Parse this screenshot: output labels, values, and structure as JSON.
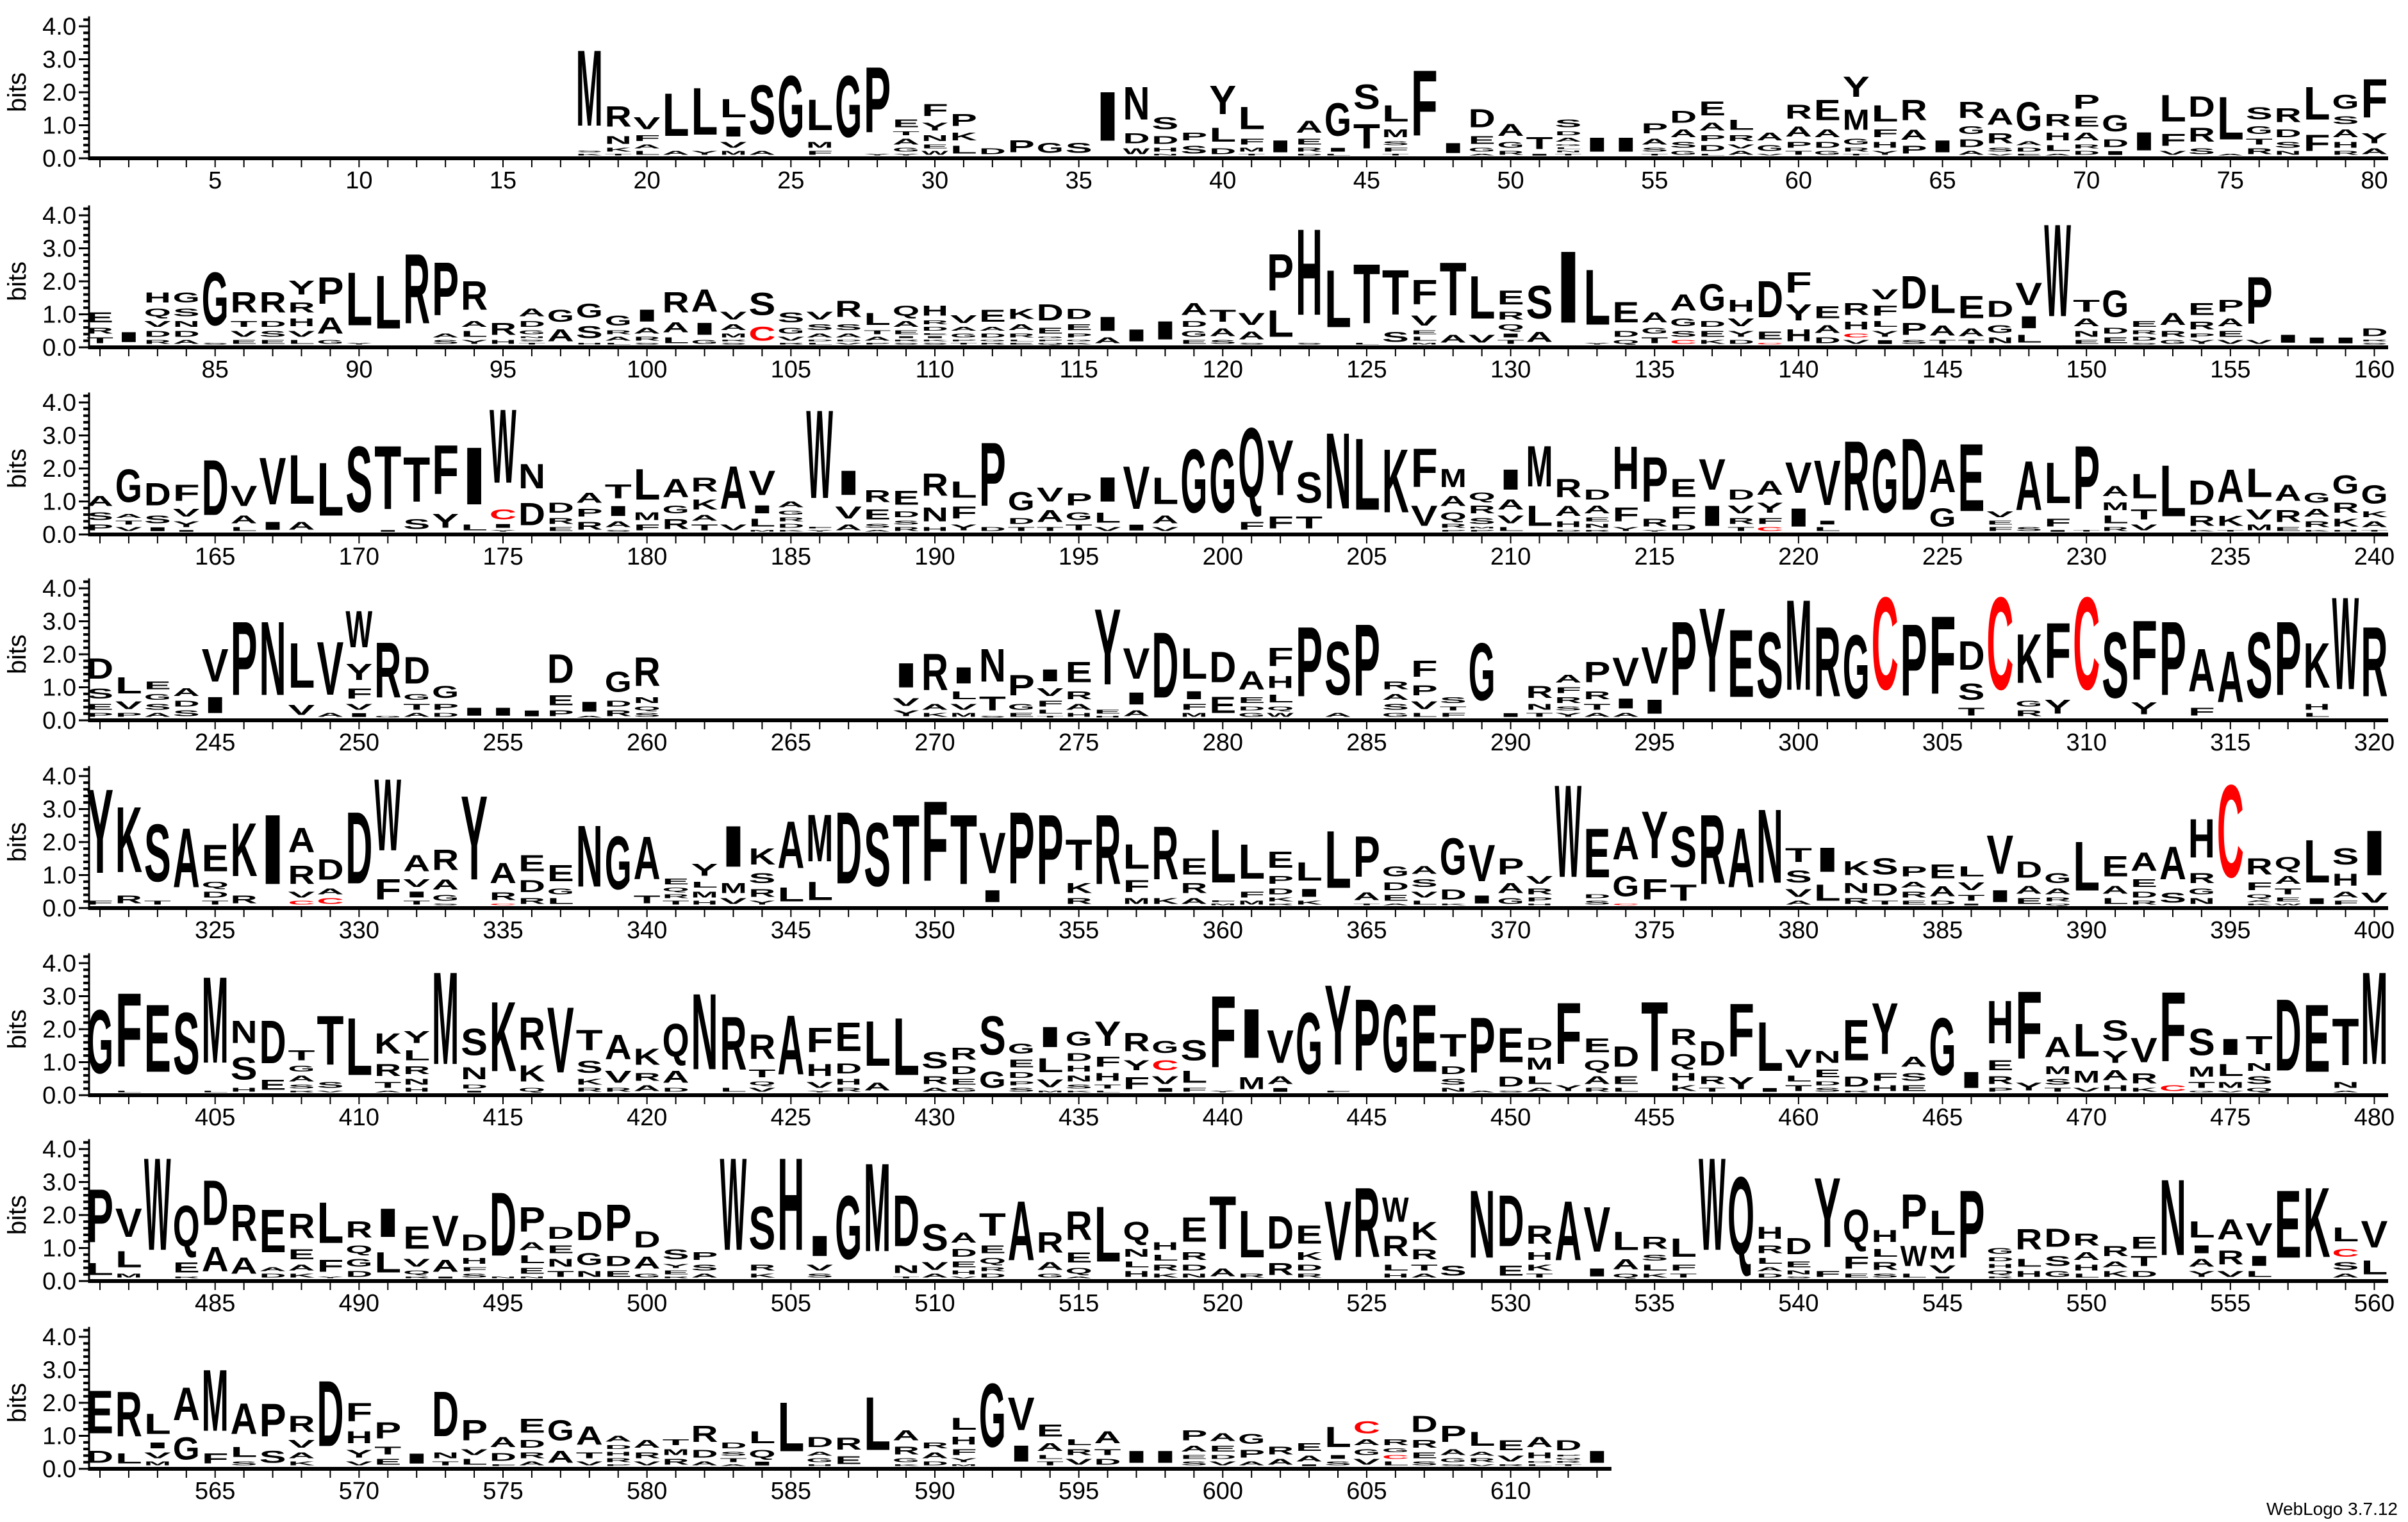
{
  "chart_data": {
    "type": "bar",
    "stacked": true,
    "ylabel": "bits",
    "ylim": [
      0,
      4.3
    ],
    "y_tick_labels": [
      "0.0",
      "1.0",
      "2.0",
      "3.0",
      "4.0"
    ],
    "colors": {
      "default": "#000000",
      "C": "#ff0000",
      "axis": "#000000"
    },
    "footer": "WebLogo 3.7.12",
    "rows": [
      {
        "start": 1,
        "xtick_labels": [
          "5",
          "10",
          "15",
          "20",
          "25",
          "30",
          "35",
          "40",
          "45",
          "50",
          "55",
          "60",
          "65",
          "70",
          "75",
          "80"
        ],
        "stacks": [
          "",
          "",
          "",
          "",
          "",
          "",
          "",
          "",
          "",
          "",
          "",
          "",
          "",
          "",
          "",
          "",
          "",
          "M3.7 S.1 K.1",
          "R1.0 N.4 K.2 T.1",
          "V.6 F.3 A.2 L.2",
          "L2.1 A.2",
          "L2.3 Y.2",
          "L.9 I.5 V.3 M.2",
          "S2.4 A.2",
          "G3.0",
          "L1.5 M.3 F.2",
          "G3.0",
          "P3.2 Y.1",
          "E.4 T.2 A.3 G.2 Y.1",
          "F.6 Y.4 N.3 E.2 W.2",
          "P.6 K.4 L.4",
          "D.3",
          "P.6",
          "G.5",
          "S.5",
          "I2.4",
          "N1.6 D.5 W.3",
          "S.6 D.4 H.2 N.1",
          "P.4 S.4",
          "Y1.4 L.7 D.3",
          "L1.1 F.3 M.2 T.1",
          "I.6",
          "A.6 E.3 R.2 D.1",
          "G1.6 I.2 L.1",
          "S1.2 T1.2",
          "L.8 M.4 S.2 F.2 T.1",
          "F3.2",
          "I.5",
          "D.9 E.4 G.2 A.1",
          "A.6 G.3 R.2",
          "T.6 I.1",
          "S.4 D.2 A.2 G.1 L.1 N.1 T.1",
          "I.7",
          "I.7",
          "P.5 A.3 S.2 T.1",
          "D.6 A.4 S.3 G.2",
          "E.7 A.4 P.3 D.3 L.1",
          "L.5 R.3 V.2 A.2",
          "A.4 G.3 V.1",
          "R.7 A.5 P.3 T.2",
          "E1.0 A.4 D.3 G.2",
          "Y1.0 M1.0 G.3 R.2 T.1",
          "L.8 F.4 H.3 Y.2",
          "R1.0 A.5 P.4",
          "I.6",
          "R.8 G.4 D.4 A.2",
          "A.8 R.5 S.2 V.1",
          "G1.4 A.2 D.2 E.1",
          "R.6 H.4 L.3 A.1",
          "P.7 E.5 A.4 R.2 D.2",
          "G.8 D.4 I.2",
          "I.9",
          "L1.3 F.6 V.2",
          "D1.0 R.7 S.3",
          "L2.1 A.1",
          "S.6 G.4 T.3 R.3",
          "R.7 D.4 S.3 N.2",
          "L1.6 F.8",
          "G.7 S.4 A.4 H.3 R.2",
          "F1.9 Y.5 A.3"
        ]
      },
      {
        "start": 81,
        "xtick_labels": [
          "85",
          "90",
          "95",
          "100",
          "105",
          "110",
          "115",
          "120",
          "125",
          "130",
          "135",
          "140",
          "145",
          "150",
          "155",
          "160"
        ],
        "stacks": [
          "E.5 R.3 T.3",
          "I.5",
          "H.5 Q.4 V.3 D.3 R.2",
          "G.5 S.4 N.3 D.3 A.2",
          "G2.6 S.1",
          "R1.0 T.3 V.3 E.2",
          "R1.0 D.3 S.3 E.2",
          "Y.7 R.5 H.4 V.3 L.2",
          "P1.3 A.8 G.2",
          "L2.6 Y.1",
          "L2.6",
          "R3.4",
          "P2.6 A.2 S.2",
          "R1.4 A.3 L.3 Y.2",
          "R.6 H.2",
          "A.4 D.3 G.2 N.1 S.1 T.1",
          "G.6 A.6",
          "G.7 S.6 H.1",
          "G.5 R.2 A.2 L.1",
          "I.6 A.3 R.2 S.1",
          "R1.0 A.5 L.3",
          "A1.1 I.6 G.2",
          "V.4 A.3 M.2 R.1 S.1",
          "S1.1 C.7",
          "S.5 G.3 V.2 R.1",
          "V.4 S.3 A.2 D.1 L.1",
          "R.8 S.3 A.2 D.1 V.1",
          "L.6 T.2 A.2 P.1",
          "Q.5 A.3 E.2 I.1 R.1 S.1",
          "H.5 R.2 D.2 E.1 I.1 K.1 S.1",
          "V.4 A.2 G.2 P.1 T.1",
          "E.6 A.2 D.2 G.1 R.1",
          "K.5 A.3 R.2 L.1 E.1",
          "D.8 E.3 G.1 P.1 Q.1",
          "D.5 E.3 P.2 G.1 K.1",
          "I.7 A.3",
          "I.6",
          "I.9",
          "A.6 D.3 G.3 E.2",
          "T.6 A.4 S.2",
          "V.6 A.4 S.1",
          "P1.8 L1.3",
          "H4.2 S.1",
          "L2.8",
          "T2.9 L.1",
          "T2.2 S.5",
          "F1.2 V.5 E.2 L.2 M.1",
          "T2.6 A.4",
          "L2.1 V.4",
          "E.7 R.4 Q.3 I.2 T.2",
          "S1.6 A.5",
          "I3.5",
          "L2.7 Y.1",
          "E1.0 D.3 Q.2",
          "A.5 G.3 T.3",
          "A.8 G.4 S.3 C.2",
          "G1.3 D.3 E.3 K.2",
          "H.6 V.4 Y.3 D.2",
          "D1.8 E.4 C.1",
          "F1.0 Y.8 H.6",
          "E.6 A.4 D.3",
          "R.6 H.4 C.2 V.2",
          "V.5 F.5 L.3 Y.3 I.2",
          "D1.6 P.6 S.2",
          "L1.4 A.5 T.2",
          "E1.1 A.4 T.2",
          "D.8 G.4 N.3",
          "V1.1 I.6 L.4",
          "W4.5",
          "T.6 A.4 N.3 E.2",
          "G1.3 D.3 E.3",
          "E.3 R.2 D.2 S.1",
          "A.6 R.3 G.2",
          "E.6 R.4 P.2 Y.2",
          "P.6 A.4 E.3 V.2",
          "P2.3 V.2",
          "I.4",
          "I.3",
          "I.3",
          "D.4 R.1 S.1"
        ]
      },
      {
        "start": 161,
        "xtick_labels": [
          "165",
          "170",
          "175",
          "180",
          "185",
          "190",
          "195",
          "200",
          "205",
          "210",
          "215",
          "220",
          "225",
          "230",
          "235",
          "240"
        ],
        "stacks": [
          "A.5 S.4 P.3",
          "G1.6 A.2 T.2 V.2",
          "D1.1 S.4 I.2",
          "F.8 V.4 Y.3 I.1",
          "D2.7",
          "V1.0 A.4 L.2",
          "V2.3 I.4",
          "L2.4 A.4",
          "L2.6",
          "S3.2",
          "T3.1 I.1",
          "T2.2 S.5",
          "F2.4 Y.7",
          "I2.8 L.3",
          "W3.6 C.5 I.2 Y.1",
          "N1.2 D1.1",
          "D.5 R.3 E.2",
          "A.5 P.4 R.4",
          "T.7 I.5 A.3 S.1",
          "L1.5 M.4 F.3",
          "A.9 G.4 R.5",
          "R.7 K.5 A.3 T.3",
          "A2.1 V.3",
          "V1.2 I.4 L.4 M.1",
          "A.3 G.2 R.2 D.2 K.1",
          "W4.3 F.1 Y.1",
          "I1.2 V.6 A.3",
          "R.6 E.5 S.2 A.1",
          "E.7 D.3 S.2 R.2",
          "R1.1 N.7 H.2",
          "L.8 F.6 Y.3",
          "P3.1 D.2",
          "G.9 D.3 T.2",
          "V.7 A.6 T.2",
          "P.6 G.4 T.3",
          "I1.2 L.5 V.2",
          "V2.1 I.3",
          "L1.3 A.4 V.2",
          "G3.1",
          "G3.1",
          "Q3.4 F.4",
          "Y2.7 F.6",
          "S1.5 T.6",
          "N3.7",
          "L3.5",
          "K3.1",
          "F1.9 V1.0",
          "M.9 A.5 Q.4 R.2 P.1",
          "Q.4 R.4 S.3 M.1 P.1",
          "I1.0 A.5 V.4 L.2",
          "M2.0 L1.0",
          "R.9 A.5 H.3 D.1",
          "D.5 A.4 E.2 N.2 R.1",
          "H2.1 F.7 Y.2",
          "P2.2 R.4 Y.1",
          "E.9 F.6 D.3",
          "V1.5 I1.0",
          "D.5 V.4 R.3 T.2",
          "A.7 Y.5 F.3 C.2",
          "V1.5 I.9",
          "V2.2 I.2 L.2",
          "R3.4",
          "G3.1",
          "D3.5",
          "A1.6 G.9",
          "E3.3",
          "V.3 E.2 F.2",
          "A2.4 S.2",
          "L2.0 F.4 I.1",
          "P3.1 T.1",
          "A.5 M.4 L.4 R.2",
          "L1.2 T.5 V.3",
          "L2.5",
          "D1.2 R.5 K.1",
          "A1.6 K.5 T.1",
          "L1.4 V.5 M.3",
          "A.8 R.6 E.2",
          "G.5 A.4 R.3 K.1",
          "G.9 R.5 K.4 H.1",
          "G.9 K.3 A.3 T.1"
        ]
      },
      {
        "start": 241,
        "xtick_labels": [
          "245",
          "250",
          "255",
          "260",
          "265",
          "270",
          "275",
          "280",
          "285",
          "290",
          "295",
          "300",
          "305",
          "310",
          "315",
          "320"
        ],
        "stacks": [
          "D1.0 S.5 E.3 P.2",
          "L.8 V.4 P.2",
          "E.4 G.3 S.3 A.2",
          "A.4 D.3 S.3",
          "V1.6 I.8",
          "P3.6",
          "N3.6",
          "L2.2 V.5",
          "V2.6 A.2",
          "W1.8 Y.8 F.5 V.3 I.2",
          "R2.7 G.1",
          "D1.3 G.3 T.3 A.2",
          "G.6 P.3 D.2",
          "I.4",
          "I.4",
          "I.3",
          "D1.4 E.5 P.3",
          "I.5 A.1",
          "G1.0 D.3 R.3",
          "R1.4 N.3 Q.2 S.2",
          "",
          "",
          "",
          "",
          "",
          "",
          "",
          "",
          "I1.2 V.4 Y.3",
          "R1.8 A.3 K.2",
          "I.8 L.4 V.3 M.2",
          "N1.6 T.7 S.1",
          "P1.0 G.3 E.2",
          "I.6 V.4 F.3 L.2 T.1",
          "E1.0 R.4 A.3 H.2",
          "Y3.7 E.2 H.1",
          "V1.5 I.6 A.3",
          "D3.2",
          "L1.5 I.4 F.3 M.2",
          "D1.5 E.8",
          "A.9 E.3 D.2 G.2",
          "F.9 H.6 L.4 Q.2 W.2",
          "P3.4",
          "S2.6 A.2",
          "P3.5",
          "R.4 A.3 S.3 G.2",
          "F.8 P.5 V.4 L.2",
          "S.3 T.2 F.2",
          "G2.8",
          "I.2",
          "R.6 N.3 T.2",
          "A.4 F.3 R.3 S.2 Y.2",
          "P1.0 R.4 T.3 A.2",
          "V1.4 I.5 A.2",
          "V1.8 I.7",
          "P3.6",
          "Y4.1",
          "E3.3",
          "S3.2",
          "M4.4",
          "R3.4",
          "G3.1",
          "C4.5",
          "P3.5",
          "F3.8",
          "D1.4 S.8 T.4",
          "C4.5",
          "K2.4 G.3 R.3",
          "F2.7 Y.7",
          "C4.5",
          "S3.2",
          "F2.9 Y.6",
          "P3.6",
          "A2.1 F.4",
          "A2.5",
          "S3.2",
          "P3.6",
          "K2.2 H.3 L.2",
          "W4.5",
          "R3.4"
        ]
      },
      {
        "start": 321,
        "xtick_labels": [
          "325",
          "330",
          "335",
          "340",
          "345",
          "350",
          "355",
          "360",
          "365",
          "370",
          "375",
          "380",
          "385",
          "390",
          "395",
          "400"
        ],
        "stacks": [
          "Y4.1 F.2",
          "K3.2 R.4",
          "S2.8 T.2",
          "A2.9",
          "E1.3 Q.3 D.3 T.2",
          "K2.6 R.4",
          "I3.4",
          "A1.2 R.9 V.3 C.2",
          "D1.0 A.3 C.3",
          "D3.5",
          "W3.5 F1.0",
          "A.8 V.4 I.3 T.2",
          "R1.0 A.5 G.3 S.1",
          "Y4.1",
          "A1.0 R.4 C.1",
          "E.8 D.6 R.3",
          "E.8 G.3 L.3",
          "N3.0",
          "G2.6",
          "A2.1 T.4",
          "E.3 Q.2 R.2 T.2",
          "Y.6 L.3 M.3 H.2",
          "I2.0 M.5 V.3",
          "K.8 S.5 R.4 Y.2",
          "A2.3 L.7",
          "M2.3 L.9",
          "D3.5",
          "S3.1",
          "T3.4",
          "F3.9",
          "T3.4",
          "V2.0 I.6",
          "P3.5",
          "P3.4",
          "T1.5 K.5 R.3",
          "R3.4",
          "L1.2 F.6 M.3",
          "R2.6 K.3",
          "E.8 R.5 A.3",
          "L2.6 F.1 M.1",
          "L1.7 F.3 M.2",
          "E.8 P.4 D.3 K.2 R.1",
          "L.9 I.4 K.2",
          "L2.8",
          "P2.0 A.4 T.1",
          "G.5 D.4 E.3 A.1",
          "A.4 S.4 V.3 L.2",
          "G1.8 D.5 K.1",
          "V1.8 I.4",
          "P.8 A.5 G.3",
          "V.4 R.3 P.2 H.1",
          "W4.5",
          "E2.4 D.2 S.2",
          "A1.6 G1.0 C.1",
          "Y2.3 F1.0",
          "S2.0 T.8",
          "R3.4",
          "A2.9",
          "N3.6",
          "T.7 S.6 V.4 A.2",
          "I1.2 L.8",
          "K.7 N.5 R.3",
          "S.8 D.6 T.2",
          "P.5 A.3 R.3 E.2",
          "E.7 A.5 D.2",
          "L.5 V.4 T.3 I.1",
          "V1.9 I.6",
          "D.8 A.4 E.3",
          "G.5 A.3 R.2 Q.1",
          "L2.4",
          "E1.0 A.4 L.3",
          "A.9 E.4 D.3 R.2",
          "A1.6 S.5",
          "H1.9 R.5 G.3 N.3",
          "C4.5",
          "R.8 F.4 Q.2 A.1 K.1",
          "Q.6 A.4 T.3 E.2 W.1",
          "L2.1 I.3",
          "S.8 H.6 A.3 F.2",
          "I2.2 V.5"
        ]
      },
      {
        "start": 401,
        "xtick_labels": [
          "405",
          "410",
          "415",
          "420",
          "425",
          "430",
          "435",
          "440",
          "445",
          "450",
          "455",
          "460",
          "465",
          "470",
          "475",
          "480"
        ],
        "stacks": [
          "G3.1",
          "F3.6 L.1",
          "E3.3",
          "S3.0",
          "M4.2 L.1",
          "N1.1 S1.1 H.2",
          "D2.1 E.5",
          "T.5 G.3 A.3 S.2 R.1",
          "T2.4 S.3 V.1",
          "L2.8",
          "K1.0 R.6 T.3 A.1",
          "Y.6 L.5 R.4 N.3 H.2",
          "M4.5",
          "S1.3 N.6 D.2 I.1",
          "K3.4",
          "R1.6 K.8 Q.2",
          "V3.2",
          "T1.0 S.6 K.3 R.2",
          "A1.2 V.6 R.2",
          "K.8 R.4 A.3",
          "Q1.6 A.6 D.2",
          "N3.7",
          "R2.6 L.2",
          "R1.2 T.4 Q.2 V.2",
          "A2.9",
          "F1.2 H.6 V.3 Y.1",
          "E1.4 D.5 H.3 R.2",
          "L2.2 A.4",
          "L2.8",
          "S.8 R.4 A.2",
          "R.6 D.4 E.3 G.2",
          "S1.9 G.8",
          "G.5 E.4 D.3 P.2 S.2",
          "I1.0 L.7 V.4 M.1",
          "G.7 D.4 H.3 N.3 S.2 K.1",
          "Y1.2 F.5 H.4 T.2 L.1",
          "R.9 Y.5 F.6",
          "G.6 C.5 V.4 I.2",
          "S1.0 L.6 F.2",
          "F3.5 Y.1",
          "I2.4 M.6",
          "V1.6 A.4 I.2",
          "G3.0",
          "Y3.9 F.1",
          "P3.5",
          "G3.3",
          "E3.3",
          "T1.1 D.4 S.3 N.2",
          "P2.7 A.1",
          "E1.7 D.5 S.1",
          "D.6 M.6 L.4 A.2",
          "F3.0 Y.3",
          "E.7 Q.5 A.4 R.2",
          "D1.0 E.4 L.2",
          "T3.4",
          "R.8 Q.6 H.4 K.3",
          "D1.2 R.4 T.2",
          "F2.6 Y.6",
          "L2.4 I.2",
          "V.9 L.3 T.3",
          "N.6 E.4 D.2 S.2",
          "E2.0 D.5 R.1",
          "Y2.5 F.4 H.3",
          "A.5 S.4 E.3",
          "G2.8",
          "I.8",
          "H2.1 E.5 R.4 P.2",
          "F3.3 Y.4",
          "A1.0 M.4 S.3 T.2",
          "L1.6 M.6 V.2",
          "S1.0 Y.6 A.5 H.3",
          "V1.2 R.5 K.2",
          "F3.4 C.3",
          "S1.3 M.5 T.3 G.1",
          "I.8 L.6 M.3 V.1",
          "T.9 N.4 S.4 Q.2",
          "D3.5",
          "E3.3",
          "T2.3 N.3 A.1",
          "M4.5"
        ]
      },
      {
        "start": 481,
        "xtick_labels": [
          "485",
          "490",
          "495",
          "500",
          "505",
          "510",
          "515",
          "520",
          "525",
          "530",
          "535",
          "540",
          "545",
          "550",
          "555",
          "560"
        ],
        "stacks": [
          "P2.6 L.6",
          "V1.4 L.8 M.2",
          "W4.5",
          "Q2.0 E.5 R.1",
          "D2.2 A1.2",
          "R1.8 A.8",
          "E2.1 A.2 D.2",
          "R1.2 E.5 A.3 K.2",
          "L2.0 F.6 Y.1",
          "R.8 Q.4 G.4 D.3",
          "I1.4 L1.0",
          "E1.1 V.4 Q.2 R.1",
          "V1.5 A.6 I.1",
          "D.8 H.3 F.2 S.2",
          "D3.1 N.1",
          "P1.2 A.4 L.4 E.3 N.1",
          "D.6 E.4 N.4 T.3",
          "D1.4 G.6 N.3",
          "P1.8 D.5 E.3",
          "D.8 A.6 G.2",
          "S.5 Y.2 E.2 R.1",
          "P.4 S.3 A.2",
          "W4.5",
          "S2.1 R.3 K.2",
          "H4.5",
          "I1.0 V.3 S.2",
          "G3.1",
          "M4.3",
          "D2.5 N.4 T.1",
          "S1.3 V.4 A.2",
          "A.5 D.4 E.3 H.2 V.1",
          "T1.1 E.4 Q.3 R.2 D.2",
          "A2.9",
          "R1.0 A.4 G.2",
          "R1.4 E.5 Q.3 A.1",
          "L2.7",
          "Q.9 N.4 L.3 H.3",
          "H.4 L.3 R.3 K.2",
          "E1.2 R.4 D.3 N.2",
          "T2.6 A.4",
          "L2.3 R.2",
          "D1.6 R.6",
          "E.9 K.4 D.3 R.2",
          "V2.9",
          "R3.4",
          "W1.2 R1.0 L.3 H.2",
          "K.9 R.5 T.3 A.2",
          "S.5",
          "N3.3",
          "D2.5 E.5",
          "R.9 H.4 K.3 T.2",
          "A2.9",
          "V2.2 I.4",
          "L.9 A.5 Q.2",
          "R.6 S.3 L.3 K.2",
          "L.9 F.3 T.2",
          "W4.5",
          "Q3.8",
          "H.6 R.4 L.3 A.2 D.2",
          "D.8 E.3 N.2 S.1",
          "Y3.4 F.3",
          "Q1.6 F.6 E.2",
          "H.6 L.4 R.4 S.2",
          "P1.7 W1.0 L.2",
          "L1.2 M.6 V.4 I.1",
          "P3.3",
          "G.3 D.2 H.2 Q.2 R.1",
          "R1.0 L.4 H.3",
          "D.9 S.5 G.3",
          "R.6 A.4 H.3 L.2",
          "R.5 A.3 K.3",
          "E.6 T.5 D.3",
          "N3.7",
          "L.8 I.4 A.4 Y.3",
          "A1.0 R.7 V.3",
          "V1.1 I.5 L.3",
          "E3.3",
          "K3.4",
          "L.7 C.4 S.4 A.2",
          "V1.3 L.7"
        ]
      },
      {
        "start": 561,
        "xtick_labels": [
          "565",
          "570",
          "575",
          "580",
          "585",
          "590",
          "595",
          "600",
          "605",
          "610"
        ],
        "stacks": [
          "E2.1 D.6",
          "R2.2 L.5",
          "L1.0 I.3 V.3 M.2",
          "A1.6 G1.1",
          "M3.0 F.5",
          "A1.5 L.5 S.2",
          "P1.6 S.6",
          "R.8 V.4 A.3 K.2",
          "D3.2",
          "F.9 H.6 Y.4 V.2",
          "P.8 T.4 E.3",
          "I.5",
          "D2.2 N.3 T.2",
          "P1.0 V.3 L.3",
          "A.5 D.4 F.1",
          "E.7 D.4 R.3 A.2",
          "G1.0 A.6",
          "A.9 T.3 V.2",
          "A.3 D.2 H.2 R.2 P.1",
          "A.4 R.3 V.2",
          "T.3 M.3 R.3",
          "R.8 D.4 A.2",
          "D.3 S.2 T.2 A.1",
          "L.6 Q.4 I.2",
          "L2.4",
          "D.5 A.2 G.2 H.1",
          "R.6 E.4",
          "L2.6",
          "A.5 R.4 G.2 K.1",
          "R.3 A.3 D.2",
          "L.6 H.4 F.3 Y.2 M.1",
          "G3.1",
          "V1.6 I.8",
          "E.6 A.4 L.2 T.2",
          "L.3 R.3 V.3",
          "A.6 T.3 D.3",
          "I.6",
          "I.6",
          "P.5 A.3 E.2 S.2",
          "A.4 E.3 D.2 V.2",
          "G.5 P.4 A.2",
          "R.4 A.3",
          "E.4 A.3 I.1",
          "L1.0 I.2 S.2",
          "C.6 A.3 G.3 V.3",
          "R.3 G.2 C.2 L.2",
          "D.8 R.4 E.3 S.2",
          "P.8 A.3 G.2 S.1",
          "L.7 A.2 R.2 V.1",
          "E.5 V.3 R.1",
          "A.5 H.3 D.1 L.1",
          "D.5 P.1 Q.1 R.1 T.1",
          "I.6"
        ]
      }
    ]
  }
}
